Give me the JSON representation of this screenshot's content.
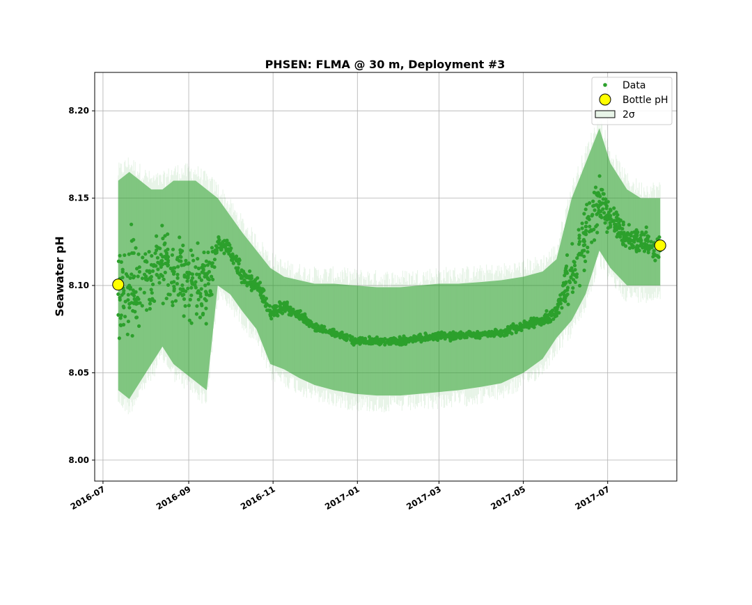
{
  "chart_data": {
    "type": "scatter",
    "title": "PHSEN: FLMA @ 30 m, Deployment #3",
    "xlabel": "",
    "ylabel": "Seawater pH",
    "xlim": [
      "2016-06-25",
      "2017-08-20"
    ],
    "ylim": [
      7.988,
      8.222
    ],
    "x_ticks": [
      "2016-07",
      "2016-09",
      "2016-11",
      "2017-01",
      "2017-03",
      "2017-05",
      "2017-07"
    ],
    "y_ticks": [
      "8.00",
      "8.05",
      "8.10",
      "8.15",
      "8.20"
    ],
    "grid": true,
    "legend": {
      "position": "top-right",
      "entries": [
        "Data",
        "Bottle pH",
        "2σ"
      ]
    },
    "colors": {
      "data": "#2ca02c",
      "band": "#2ca02c",
      "bottle_fill": "#ffff00",
      "bottle_edge": "#000000"
    },
    "series": [
      {
        "name": "Data",
        "kind": "points",
        "x": [
          "2016-07-12",
          "2016-07-20",
          "2016-07-28",
          "2016-08-05",
          "2016-08-13",
          "2016-08-21",
          "2016-08-29",
          "2016-09-06",
          "2016-09-14",
          "2016-09-22",
          "2016-10-01",
          "2016-10-10",
          "2016-10-20",
          "2016-10-30",
          "2016-11-09",
          "2016-11-20",
          "2016-12-01",
          "2016-12-15",
          "2016-12-30",
          "2017-01-15",
          "2017-02-01",
          "2017-02-15",
          "2017-03-01",
          "2017-03-15",
          "2017-04-01",
          "2017-04-15",
          "2017-05-01",
          "2017-05-15",
          "2017-05-25",
          "2017-06-05",
          "2017-06-15",
          "2017-06-25",
          "2017-07-03",
          "2017-07-15",
          "2017-07-25",
          "2017-08-08"
        ],
        "y": [
          8.095,
          8.1,
          8.098,
          8.105,
          8.112,
          8.11,
          8.105,
          8.102,
          8.095,
          8.125,
          8.12,
          8.105,
          8.1,
          8.085,
          8.088,
          8.083,
          8.076,
          8.073,
          8.068,
          8.068,
          8.068,
          8.07,
          8.071,
          8.071,
          8.072,
          8.073,
          8.077,
          8.08,
          8.085,
          8.11,
          8.13,
          8.148,
          8.14,
          8.127,
          8.125,
          8.12
        ],
        "spread": [
          0.045,
          0.045,
          0.04,
          0.035,
          0.03,
          0.03,
          0.032,
          0.035,
          0.03,
          0.006,
          0.008,
          0.008,
          0.008,
          0.006,
          0.005,
          0.004,
          0.003,
          0.003,
          0.003,
          0.003,
          0.003,
          0.003,
          0.003,
          0.003,
          0.003,
          0.003,
          0.004,
          0.005,
          0.006,
          0.025,
          0.025,
          0.02,
          0.015,
          0.012,
          0.012,
          0.012
        ]
      },
      {
        "name": "2σ",
        "kind": "band",
        "x": [
          "2016-07-12",
          "2016-07-20",
          "2016-07-28",
          "2016-08-05",
          "2016-08-13",
          "2016-08-21",
          "2016-08-29",
          "2016-09-06",
          "2016-09-14",
          "2016-09-22",
          "2016-10-01",
          "2016-10-10",
          "2016-10-20",
          "2016-10-30",
          "2016-11-09",
          "2016-11-20",
          "2016-12-01",
          "2016-12-15",
          "2016-12-30",
          "2017-01-15",
          "2017-02-01",
          "2017-02-15",
          "2017-03-01",
          "2017-03-15",
          "2017-04-01",
          "2017-04-15",
          "2017-05-01",
          "2017-05-15",
          "2017-05-25",
          "2017-06-05",
          "2017-06-15",
          "2017-06-25",
          "2017-07-03",
          "2017-07-15",
          "2017-07-25",
          "2017-08-08"
        ],
        "lower": [
          8.04,
          8.035,
          8.045,
          8.055,
          8.065,
          8.055,
          8.05,
          8.045,
          8.04,
          8.1,
          8.095,
          8.085,
          8.075,
          8.055,
          8.052,
          8.047,
          8.043,
          8.04,
          8.038,
          8.037,
          8.037,
          8.038,
          8.039,
          8.04,
          8.042,
          8.044,
          8.05,
          8.058,
          8.07,
          8.08,
          8.095,
          8.12,
          8.11,
          8.1,
          8.1,
          8.1
        ],
        "upper": [
          8.16,
          8.165,
          8.16,
          8.155,
          8.155,
          8.16,
          8.16,
          8.16,
          8.155,
          8.15,
          8.14,
          8.13,
          8.12,
          8.11,
          8.105,
          8.103,
          8.101,
          8.101,
          8.1,
          8.099,
          8.099,
          8.1,
          8.101,
          8.101,
          8.102,
          8.103,
          8.105,
          8.108,
          8.115,
          8.15,
          8.17,
          8.19,
          8.17,
          8.155,
          8.15,
          8.15
        ]
      },
      {
        "name": "Bottle pH",
        "kind": "markers",
        "x": [
          "2016-07-12",
          "2017-08-08"
        ],
        "y": [
          8.1005,
          8.1229
        ]
      }
    ]
  }
}
